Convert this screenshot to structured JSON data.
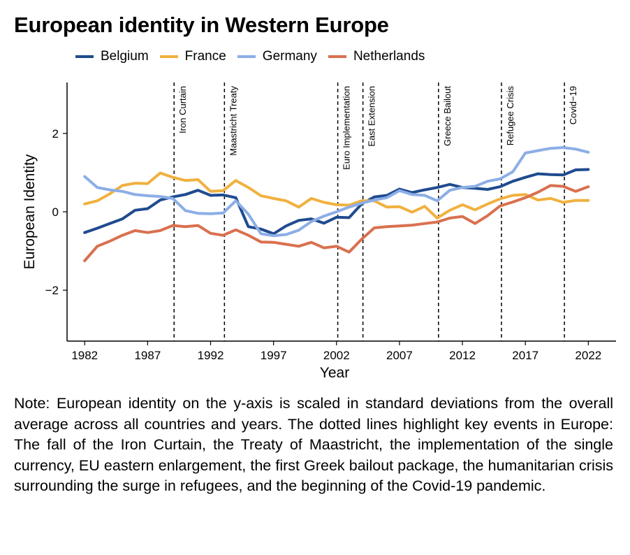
{
  "chart_data": {
    "type": "line",
    "title": "European identity in Western Europe",
    "xlabel": "Year",
    "ylabel": "European Identity",
    "xlim": [
      1980.6,
      2024.2
    ],
    "ylim": [
      -3.3,
      3.3
    ],
    "x_ticks": [
      1982,
      1987,
      1992,
      1997,
      2002,
      2007,
      2012,
      2017,
      2022
    ],
    "y_ticks": [
      -2,
      0,
      2
    ],
    "y_tick_labels": [
      "−2",
      "0",
      "2"
    ],
    "legend_position": "top",
    "grid": false,
    "x": [
      1982,
      1983,
      1984,
      1985,
      1986,
      1987,
      1988,
      1989,
      1990,
      1991,
      1992,
      1993,
      1994,
      1995,
      1996,
      1997,
      1998,
      1999,
      2000,
      2001,
      2002,
      2003,
      2004,
      2005,
      2006,
      2007,
      2008,
      2009,
      2010,
      2011,
      2012,
      2013,
      2014,
      2015,
      2016,
      2017,
      2018,
      2019,
      2020,
      2021,
      2022
    ],
    "series": [
      {
        "name": "Belgium",
        "color": "#1f4b8f",
        "values": [
          -0.53,
          -0.42,
          -0.3,
          -0.18,
          0.04,
          0.08,
          0.3,
          0.38,
          0.44,
          0.55,
          0.42,
          0.43,
          0.36,
          -0.38,
          -0.44,
          -0.56,
          -0.36,
          -0.22,
          -0.18,
          -0.29,
          -0.14,
          -0.15,
          0.2,
          0.38,
          0.42,
          0.58,
          0.49,
          0.56,
          0.62,
          0.7,
          0.62,
          0.6,
          0.57,
          0.64,
          0.78,
          0.88,
          0.97,
          0.95,
          0.94,
          1.07,
          1.08
        ]
      },
      {
        "name": "France",
        "color": "#f0b140",
        "values": [
          0.2,
          0.28,
          0.46,
          0.67,
          0.73,
          0.72,
          0.99,
          0.88,
          0.8,
          0.82,
          0.52,
          0.54,
          0.8,
          0.62,
          0.41,
          0.34,
          0.28,
          0.12,
          0.34,
          0.24,
          0.18,
          0.17,
          0.28,
          0.28,
          0.12,
          0.13,
          -0.01,
          0.14,
          -0.16,
          0.04,
          0.18,
          0.05,
          0.2,
          0.33,
          0.42,
          0.44,
          0.3,
          0.34,
          0.24,
          0.29,
          0.29
        ]
      },
      {
        "name": "Germany",
        "color": "#8caee6",
        "values": [
          0.9,
          0.62,
          0.56,
          0.52,
          0.44,
          0.41,
          0.39,
          0.34,
          0.03,
          -0.04,
          -0.05,
          -0.03,
          0.28,
          -0.06,
          -0.56,
          -0.61,
          -0.58,
          -0.47,
          -0.25,
          -0.11,
          0.0,
          0.12,
          0.22,
          0.3,
          0.36,
          0.54,
          0.44,
          0.42,
          0.28,
          0.55,
          0.62,
          0.65,
          0.78,
          0.84,
          1.02,
          1.5,
          1.56,
          1.62,
          1.64,
          1.6,
          1.52
        ]
      },
      {
        "name": "Netherlands",
        "color": "#d9704f",
        "values": [
          -1.25,
          -0.88,
          -0.75,
          -0.6,
          -0.48,
          -0.53,
          -0.48,
          -0.35,
          -0.38,
          -0.35,
          -0.55,
          -0.6,
          -0.46,
          -0.6,
          -0.77,
          -0.78,
          -0.83,
          -0.88,
          -0.78,
          -0.92,
          -0.88,
          -1.03,
          -0.7,
          -0.41,
          -0.38,
          -0.36,
          -0.34,
          -0.3,
          -0.26,
          -0.16,
          -0.12,
          -0.3,
          -0.1,
          0.15,
          0.25,
          0.36,
          0.5,
          0.67,
          0.65,
          0.52,
          0.64
        ]
      }
    ],
    "events": [
      {
        "label": "Iron Curtain",
        "x": 1989.1
      },
      {
        "label": "Maastricht Treaty",
        "x": 1993.1
      },
      {
        "label": "Euro Implementation",
        "x": 2002.1
      },
      {
        "label": "East Extension",
        "x": 2004.1
      },
      {
        "label": "Greece Bailout",
        "x": 2010.1
      },
      {
        "label": "Refugee Crisis",
        "x": 2015.1
      },
      {
        "label": "Covid−19",
        "x": 2020.1
      }
    ]
  },
  "note": "Note: European identity on the y-axis is scaled in standard deviations from the overall average across all countries and years. The dotted lines highlight key events in Europe: The fall of the Iron Curtain, the Treaty of Maastricht, the implementation of the single currency, EU eastern enlargement, the first Greek bailout package, the humanitarian crisis surrounding the surge in refugees, and the beginning of the Covid-19 pandemic."
}
